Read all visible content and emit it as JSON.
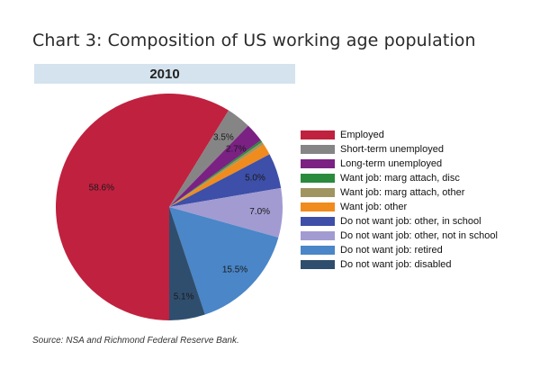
{
  "title": "Chart 3:  Composition of US working age population",
  "source": "Source: NSA and Richmond Federal Reserve Bank.",
  "chart_data": {
    "type": "pie",
    "title": "2010",
    "legend_position": "right",
    "slices": [
      {
        "name": "Employed",
        "value": 58.6,
        "label": "58.6%",
        "color": "#c0213f"
      },
      {
        "name": "Short-term unemployed",
        "value": 3.5,
        "label": "3.5%",
        "color": "#858585"
      },
      {
        "name": "Long-term unemployed",
        "value": 2.7,
        "label": "2.7%",
        "color": "#7b2183"
      },
      {
        "name": "Want job: marg attach, disc",
        "value": 0.3,
        "label": "",
        "color": "#2b8a3e"
      },
      {
        "name": "Want job: marg attach, other",
        "value": 0.4,
        "label": "",
        "color": "#a09560"
      },
      {
        "name": "Want job: other",
        "value": 1.6,
        "label": "",
        "color": "#f08b1e"
      },
      {
        "name": "Do not want job: other, in school",
        "value": 5.0,
        "label": "5.0%",
        "color": "#3d4fa8"
      },
      {
        "name": "Do not want job: other, not in school",
        "value": 7.0,
        "label": "7.0%",
        "color": "#a19bd2"
      },
      {
        "name": "Do not want job: retired",
        "value": 15.5,
        "label": "15.5%",
        "color": "#4a86c8"
      },
      {
        "name": "Do not want job: disabled",
        "value": 5.1,
        "label": "5.1%",
        "color": "#2f4e6e"
      }
    ]
  }
}
